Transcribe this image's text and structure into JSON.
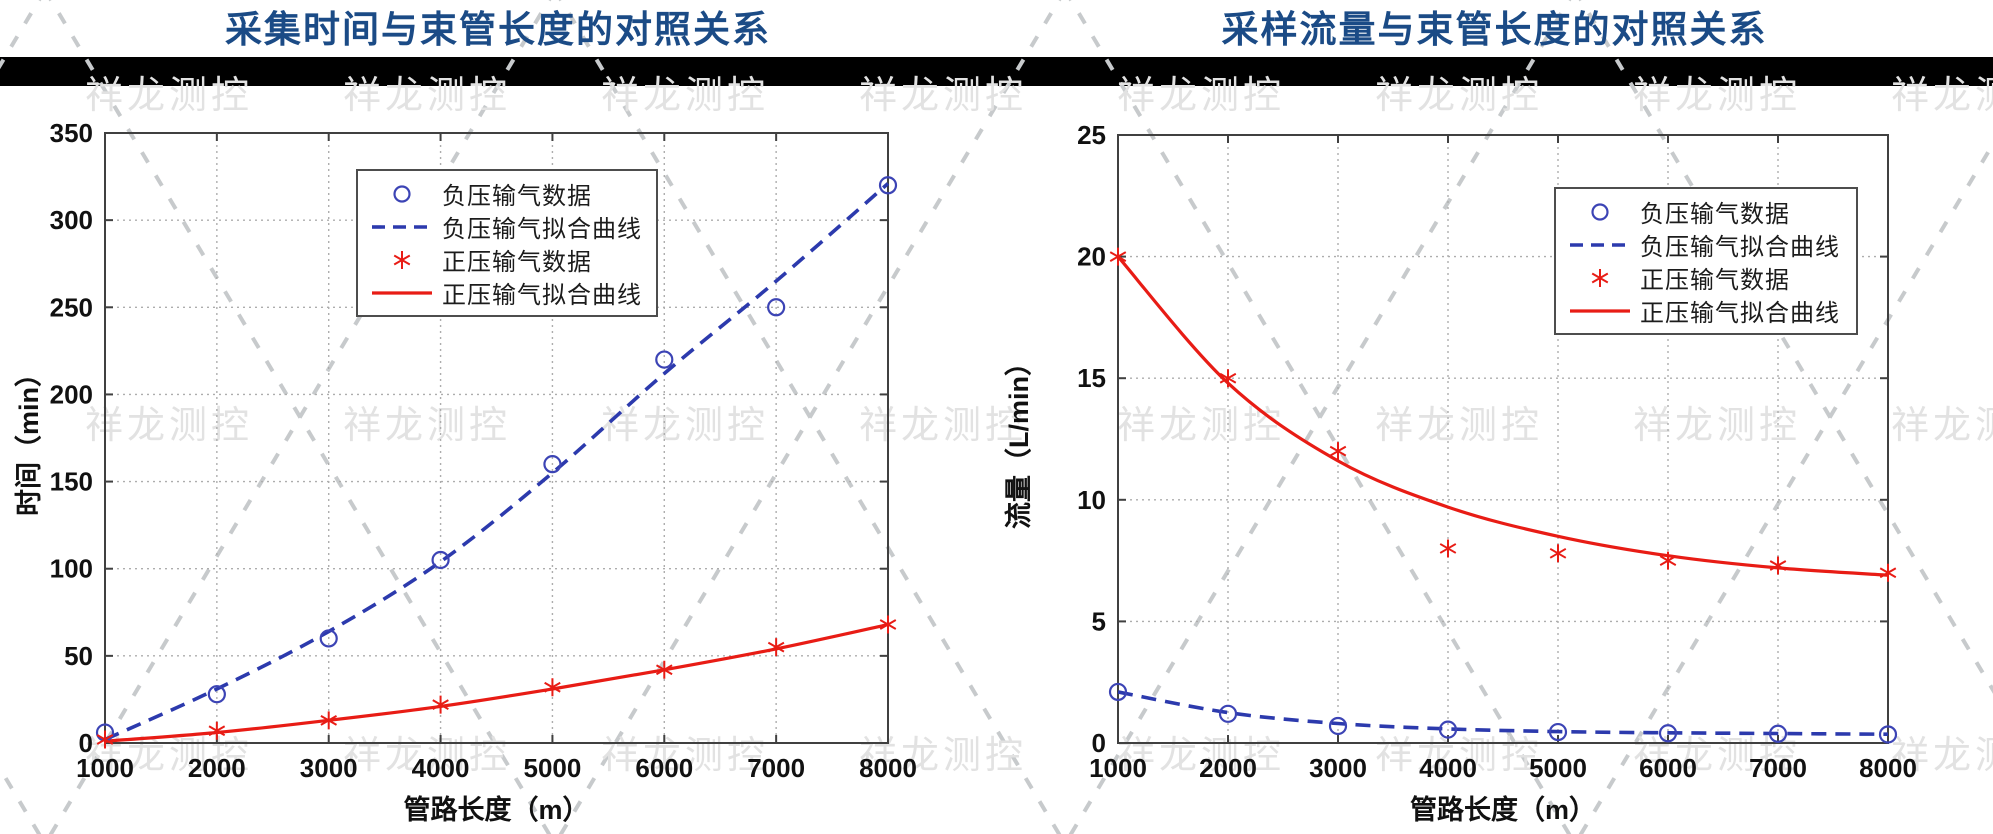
{
  "watermark": {
    "text": "祥龙测控"
  },
  "colors": {
    "title": "#1b4b86",
    "header_band": "#000000",
    "watermark_text": "#e2e2e2",
    "watermark_line": "#c7cacc",
    "grid": "#adadad",
    "axis": "#404040",
    "tick_label": "#111111",
    "blue_marker": "#3c44b5",
    "blue_line": "#2c3aad",
    "red": "#e81c15"
  },
  "chart_data": [
    {
      "type": "line",
      "title": "采集时间与束管长度的对照关系",
      "xlabel": "管路长度（m）",
      "ylabel": "时间（min）",
      "x": [
        1000,
        2000,
        3000,
        4000,
        5000,
        6000,
        7000,
        8000
      ],
      "x_ticks": [
        1000,
        2000,
        3000,
        4000,
        5000,
        6000,
        7000,
        8000
      ],
      "y_ticks": [
        0,
        50,
        100,
        150,
        200,
        250,
        300,
        350
      ],
      "xlim": [
        1000,
        8000
      ],
      "ylim": [
        0,
        350
      ],
      "grid": true,
      "legend_position": "upper-left-inside",
      "series": [
        {
          "name": "负压输气数据",
          "kind": "scatter",
          "marker": "circle",
          "color": "#3c44b5",
          "values": [
            6,
            28,
            60,
            105,
            160,
            220,
            250,
            320
          ]
        },
        {
          "name": "负压输气拟合曲线",
          "kind": "line",
          "line_style": "dashed",
          "color": "#2c3aad",
          "values": [
            2,
            31,
            64,
            104,
            155,
            212,
            265,
            321
          ]
        },
        {
          "name": "正压输气数据",
          "kind": "scatter",
          "marker": "asterisk",
          "color": "#e81c15",
          "values": [
            2,
            7,
            13,
            22,
            32,
            42,
            55,
            68
          ]
        },
        {
          "name": "正压输气拟合曲线",
          "kind": "line",
          "line_style": "solid",
          "color": "#e81c15",
          "values": [
            1,
            6,
            13,
            21,
            31,
            42,
            54,
            68
          ]
        }
      ]
    },
    {
      "type": "line",
      "title": "采样流量与束管长度的对照关系",
      "xlabel": "管路长度（m）",
      "ylabel": "流量（L/min）",
      "x": [
        1000,
        2000,
        3000,
        4000,
        5000,
        6000,
        7000,
        8000
      ],
      "x_ticks": [
        1000,
        2000,
        3000,
        4000,
        5000,
        6000,
        7000,
        8000
      ],
      "y_ticks": [
        0,
        5,
        10,
        15,
        20,
        25
      ],
      "xlim": [
        1000,
        8000
      ],
      "ylim": [
        0,
        25
      ],
      "grid": true,
      "legend_position": "upper-right-inside",
      "series": [
        {
          "name": "负压输气数据",
          "kind": "scatter",
          "marker": "circle",
          "color": "#3c44b5",
          "values": [
            2.1,
            1.2,
            0.7,
            0.55,
            0.45,
            0.4,
            0.38,
            0.35
          ]
        },
        {
          "name": "负压输气拟合曲线",
          "kind": "line",
          "line_style": "dashed",
          "color": "#2c3aad",
          "values": [
            2.1,
            1.25,
            0.8,
            0.58,
            0.47,
            0.42,
            0.39,
            0.36
          ]
        },
        {
          "name": "正压输气数据",
          "kind": "scatter",
          "marker": "asterisk",
          "color": "#e81c15",
          "values": [
            20,
            15,
            12,
            8,
            7.8,
            7.5,
            7.3,
            7
          ]
        },
        {
          "name": "正压输气拟合曲线",
          "kind": "line",
          "line_style": "solid",
          "color": "#e81c15",
          "values": [
            20,
            14.8,
            11.6,
            9.7,
            8.5,
            7.7,
            7.2,
            6.9
          ]
        }
      ]
    }
  ]
}
